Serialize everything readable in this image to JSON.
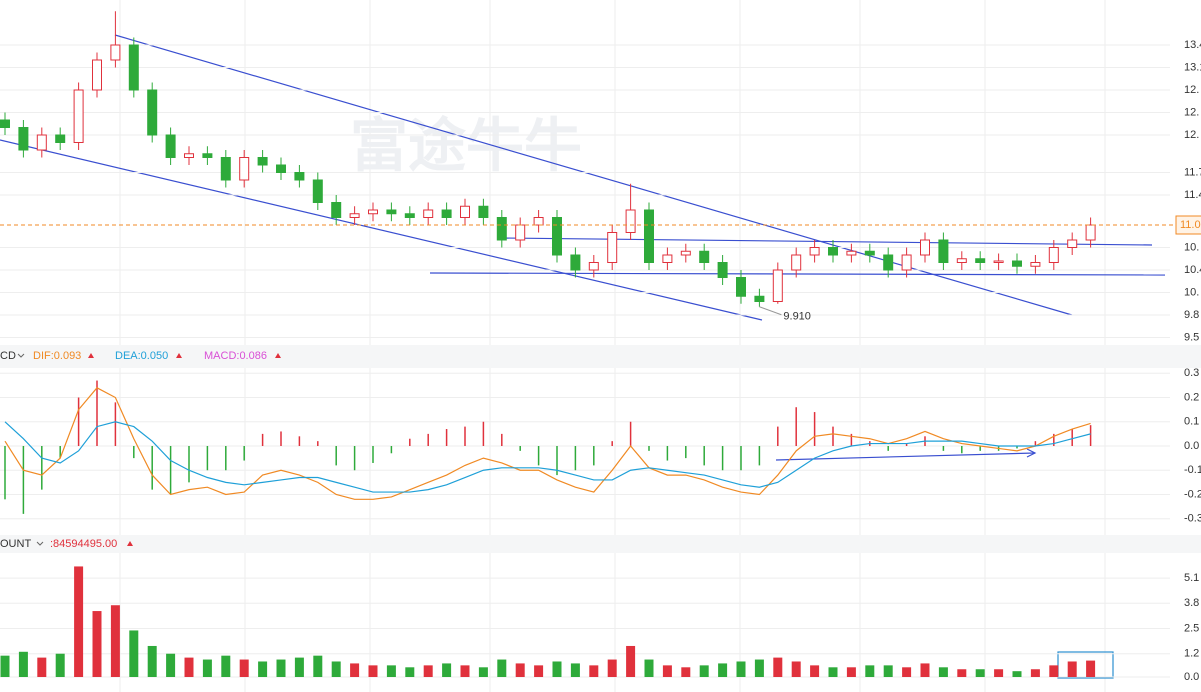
{
  "chart_data": [
    {
      "type": "candlestick",
      "watermark": "富途牛牛",
      "up_color": "#e0313c",
      "down_color": "#2eaa3a",
      "open": [
        12.4,
        12.3,
        12.0,
        12.2,
        12.1,
        12.8,
        13.2,
        13.4,
        12.8,
        12.2,
        11.9,
        11.95,
        11.9,
        11.6,
        11.9,
        11.8,
        11.7,
        11.6,
        11.3,
        11.1,
        11.15,
        11.2,
        11.15,
        11.1,
        11.2,
        11.1,
        11.25,
        11.1,
        10.8,
        11.0,
        11.1,
        10.6,
        10.4,
        10.5,
        10.9,
        11.2,
        10.5,
        10.6,
        10.65,
        10.5,
        10.3,
        10.05,
        9.98,
        10.4,
        10.6,
        10.7,
        10.6,
        10.65,
        10.6,
        10.4,
        10.6,
        10.8,
        10.5,
        10.55,
        10.5,
        10.52,
        10.45,
        10.5,
        10.7,
        10.8
      ],
      "high": [
        12.5,
        12.4,
        12.3,
        12.3,
        12.9,
        13.3,
        13.85,
        13.5,
        12.9,
        12.3,
        12.05,
        12.05,
        12.0,
        12.0,
        12.0,
        11.9,
        11.8,
        11.7,
        11.4,
        11.25,
        11.3,
        11.3,
        11.25,
        11.3,
        11.3,
        11.35,
        11.35,
        11.2,
        11.1,
        11.2,
        11.2,
        10.7,
        10.6,
        11.0,
        11.55,
        11.3,
        10.7,
        10.75,
        10.75,
        10.6,
        10.4,
        10.15,
        10.5,
        10.7,
        10.8,
        10.8,
        10.75,
        10.75,
        10.7,
        10.7,
        10.9,
        10.9,
        10.65,
        10.65,
        10.62,
        10.62,
        10.6,
        10.8,
        10.9,
        11.1
      ],
      "low": [
        12.2,
        11.9,
        11.9,
        12.0,
        12.0,
        12.7,
        13.1,
        12.7,
        12.1,
        11.8,
        11.8,
        11.8,
        11.5,
        11.5,
        11.7,
        11.6,
        11.5,
        11.2,
        11.0,
        11.0,
        11.05,
        11.05,
        11.0,
        11.0,
        11.0,
        11.0,
        11.0,
        10.7,
        10.7,
        10.9,
        10.5,
        10.3,
        10.3,
        10.4,
        10.8,
        10.4,
        10.4,
        10.5,
        10.4,
        10.2,
        9.95,
        9.91,
        9.95,
        10.3,
        10.5,
        10.5,
        10.5,
        10.5,
        10.3,
        10.3,
        10.5,
        10.4,
        10.4,
        10.4,
        10.4,
        10.35,
        10.35,
        10.4,
        10.6,
        10.7
      ],
      "close": [
        12.3,
        12.0,
        12.2,
        12.1,
        12.8,
        13.2,
        13.4,
        12.8,
        12.2,
        11.9,
        11.95,
        11.9,
        11.6,
        11.9,
        11.8,
        11.7,
        11.6,
        11.3,
        11.1,
        11.15,
        11.2,
        11.15,
        11.1,
        11.2,
        11.1,
        11.25,
        11.1,
        10.8,
        11.0,
        11.1,
        10.6,
        10.4,
        10.5,
        10.9,
        11.2,
        10.5,
        10.6,
        10.65,
        10.5,
        10.3,
        10.05,
        9.98,
        10.4,
        10.6,
        10.7,
        10.6,
        10.65,
        10.6,
        10.4,
        10.6,
        10.8,
        10.5,
        10.55,
        10.5,
        10.52,
        10.45,
        10.5,
        10.7,
        10.8,
        11.0
      ],
      "ylim": [
        9.4,
        14.0
      ],
      "yticks": [
        {
          "value": 13.4,
          "label": "13.4"
        },
        {
          "value": 13.1,
          "label": "13.1"
        },
        {
          "value": 12.8,
          "label": "12."
        },
        {
          "value": 12.5,
          "label": "12."
        },
        {
          "value": 12.2,
          "label": "12."
        },
        {
          "value": 11.7,
          "label": "11.7"
        },
        {
          "value": 11.4,
          "label": "11.4"
        },
        {
          "value": 10.7,
          "label": "10."
        },
        {
          "value": 10.4,
          "label": "10.4"
        },
        {
          "value": 10.1,
          "label": "10."
        },
        {
          "value": 9.8,
          "label": "9.8"
        },
        {
          "value": 9.5,
          "label": "9.5"
        }
      ],
      "low_annotation": {
        "value": 9.91,
        "label": "9.910"
      },
      "last_price": {
        "value": 11.0,
        "label": "11.0"
      }
    },
    {
      "type": "macd",
      "indicator": "CD",
      "header": [
        {
          "text": "DIF:0.093",
          "color": "#f08a24"
        },
        {
          "text": "DEA:0.050",
          "color": "#1fa0d8"
        },
        {
          "text": "MACD:0.086",
          "color": "#d94fd6"
        }
      ],
      "dif": [
        0.02,
        -0.1,
        -0.12,
        -0.05,
        0.15,
        0.24,
        0.2,
        0.03,
        -0.12,
        -0.2,
        -0.18,
        -0.17,
        -0.2,
        -0.19,
        -0.12,
        -0.1,
        -0.12,
        -0.15,
        -0.2,
        -0.22,
        -0.22,
        -0.21,
        -0.18,
        -0.15,
        -0.12,
        -0.08,
        -0.05,
        -0.07,
        -0.1,
        -0.1,
        -0.14,
        -0.17,
        -0.19,
        -0.1,
        0.0,
        -0.09,
        -0.12,
        -0.12,
        -0.14,
        -0.17,
        -0.19,
        -0.2,
        -0.12,
        -0.02,
        0.04,
        0.05,
        0.04,
        0.03,
        0.01,
        0.03,
        0.06,
        0.03,
        0.01,
        0.0,
        -0.01,
        -0.02,
        0.0,
        0.04,
        0.07,
        0.093
      ],
      "dea": [
        0.1,
        0.03,
        -0.05,
        -0.07,
        -0.02,
        0.08,
        0.1,
        0.08,
        0.02,
        -0.06,
        -0.1,
        -0.13,
        -0.15,
        -0.16,
        -0.15,
        -0.14,
        -0.13,
        -0.13,
        -0.15,
        -0.17,
        -0.19,
        -0.19,
        -0.19,
        -0.18,
        -0.16,
        -0.13,
        -0.1,
        -0.09,
        -0.09,
        -0.09,
        -0.1,
        -0.12,
        -0.14,
        -0.14,
        -0.1,
        -0.09,
        -0.1,
        -0.11,
        -0.12,
        -0.14,
        -0.16,
        -0.17,
        -0.15,
        -0.1,
        -0.05,
        -0.02,
        0.0,
        0.01,
        0.01,
        0.01,
        0.02,
        0.02,
        0.02,
        0.01,
        0.0,
        0.0,
        0.0,
        0.01,
        0.03,
        0.05
      ],
      "hist": [
        -0.22,
        -0.28,
        -0.18,
        -0.05,
        0.2,
        0.27,
        0.18,
        -0.05,
        -0.18,
        -0.2,
        -0.15,
        -0.1,
        -0.1,
        -0.06,
        0.05,
        0.06,
        0.04,
        0.02,
        -0.08,
        -0.1,
        -0.07,
        -0.03,
        0.03,
        0.05,
        0.07,
        0.08,
        0.1,
        0.05,
        -0.02,
        -0.08,
        -0.12,
        -0.1,
        -0.08,
        0.02,
        0.1,
        -0.02,
        -0.06,
        -0.05,
        -0.08,
        -0.1,
        -0.1,
        -0.08,
        0.08,
        0.16,
        0.14,
        0.08,
        0.05,
        0.02,
        -0.02,
        0.01,
        0.04,
        -0.02,
        -0.03,
        -0.02,
        -0.02,
        -0.01,
        0.02,
        0.05,
        0.07,
        0.086
      ],
      "ylim": [
        -0.33,
        0.33
      ],
      "yticks": [
        0.3,
        0.2,
        0.1,
        {
          "value": 0,
          "label": "0.0"
        },
        -0.1,
        -0.2,
        -0.3
      ]
    },
    {
      "type": "volume",
      "indicator": "OUNT",
      "header_value": ":84594495.00",
      "values": [
        1.1,
        1.3,
        1.0,
        1.2,
        5.7,
        3.4,
        3.7,
        2.4,
        1.6,
        1.2,
        1.0,
        0.9,
        1.1,
        0.9,
        0.8,
        0.9,
        1.0,
        1.1,
        0.8,
        0.7,
        0.6,
        0.6,
        0.5,
        0.6,
        0.7,
        0.6,
        0.5,
        0.9,
        0.7,
        0.6,
        0.8,
        0.7,
        0.6,
        0.9,
        1.6,
        0.9,
        0.6,
        0.5,
        0.6,
        0.7,
        0.8,
        0.9,
        1.0,
        0.8,
        0.6,
        0.5,
        0.5,
        0.6,
        0.6,
        0.5,
        0.7,
        0.5,
        0.4,
        0.4,
        0.4,
        0.3,
        0.4,
        0.6,
        0.8,
        0.846
      ],
      "ylim": [
        0,
        5.8
      ],
      "yticks": [
        5.1,
        3.8,
        2.5,
        1.2,
        {
          "value": 0,
          "label": "0.0"
        }
      ]
    }
  ]
}
